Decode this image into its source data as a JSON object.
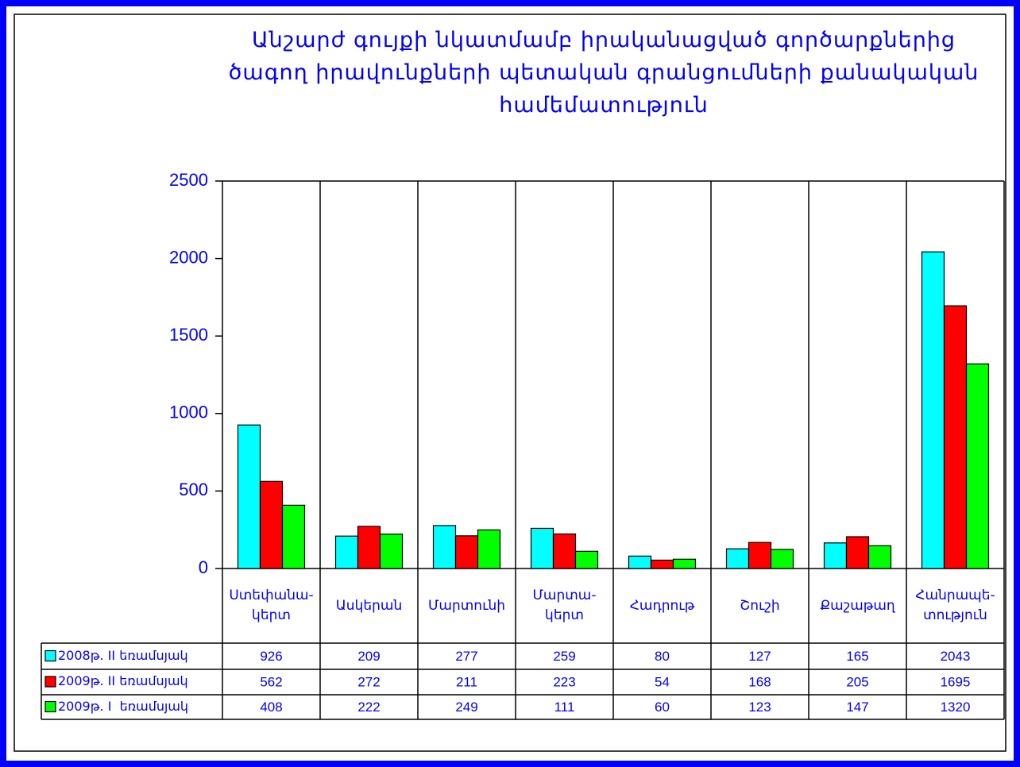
{
  "chart_data": {
    "type": "bar",
    "title": "Անշարժ գույքի նկատմամբ իրականացված գործարքներից\nծագող իրավունքների պետական գրանցումների քանակական\nհամեմատություն",
    "categories": [
      "Ստեփանա-\nկերտ",
      "Ասկերան",
      "Մարտունի",
      "Մարտա-\nկերտ",
      "Հադրութ",
      "Շուշի",
      "Քաշաթաղ",
      "Հանրապե-\nտություն"
    ],
    "series": [
      {
        "name": "2008թ. II եռամսյակ",
        "color": "#00ffff",
        "values": [
          926,
          209,
          277,
          259,
          80,
          127,
          165,
          2043
        ]
      },
      {
        "name": "2009թ. II եռամսյակ",
        "color": "#ff0000",
        "values": [
          562,
          272,
          211,
          223,
          54,
          168,
          205,
          1695
        ]
      },
      {
        "name": "2009թ. I  եռամսյակ",
        "color": "#00ff00",
        "values": [
          408,
          222,
          249,
          111,
          60,
          123,
          147,
          1320
        ]
      }
    ],
    "ylim": [
      0,
      2500
    ],
    "yticks": [
      0,
      500,
      1000,
      1500,
      2000,
      2500
    ],
    "grid": false
  }
}
